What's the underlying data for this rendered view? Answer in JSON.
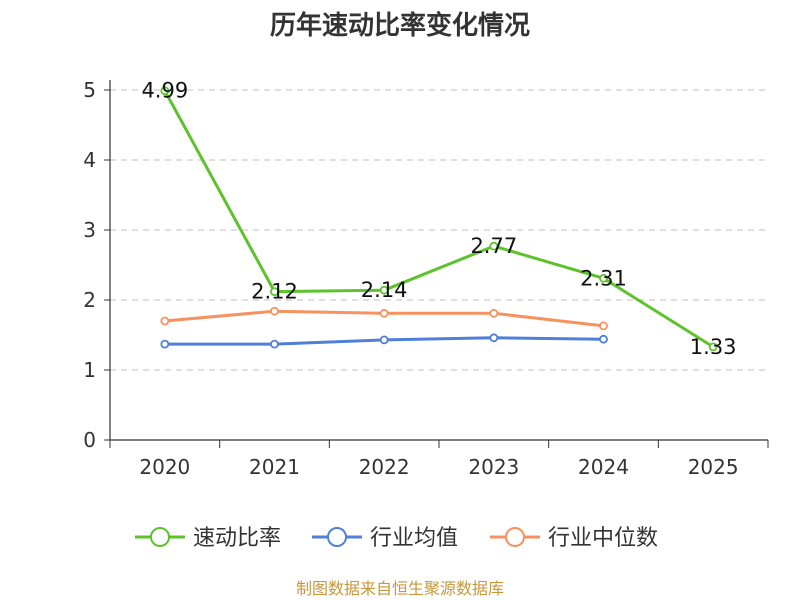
{
  "chart_data": {
    "type": "line",
    "title": "历年速动比率变化情况",
    "categories": [
      "2020",
      "2021",
      "2022",
      "2023",
      "2024",
      "2025"
    ],
    "ylim": [
      0,
      5
    ],
    "yticks": [
      "0",
      "1",
      "2",
      "3",
      "4",
      "5"
    ],
    "grid": true,
    "legend_position": "bottom",
    "series": [
      {
        "name": "速动比率",
        "color": "#5ec22d",
        "values": [
          4.99,
          2.12,
          2.14,
          2.77,
          2.31,
          1.33
        ],
        "labels": [
          "4.99",
          "2.12",
          "2.14",
          "2.77",
          "2.31",
          "1.33"
        ]
      },
      {
        "name": "行业均值",
        "color": "#4f7fd8",
        "values": [
          1.37,
          1.37,
          1.43,
          1.46,
          1.44,
          null
        ]
      },
      {
        "name": "行业中位数",
        "color": "#f5925f",
        "values": [
          1.7,
          1.84,
          1.81,
          1.81,
          1.63,
          null
        ]
      }
    ]
  },
  "footer": {
    "source": "制图数据来自恒生聚源数据库",
    "color": "#c8963c"
  }
}
